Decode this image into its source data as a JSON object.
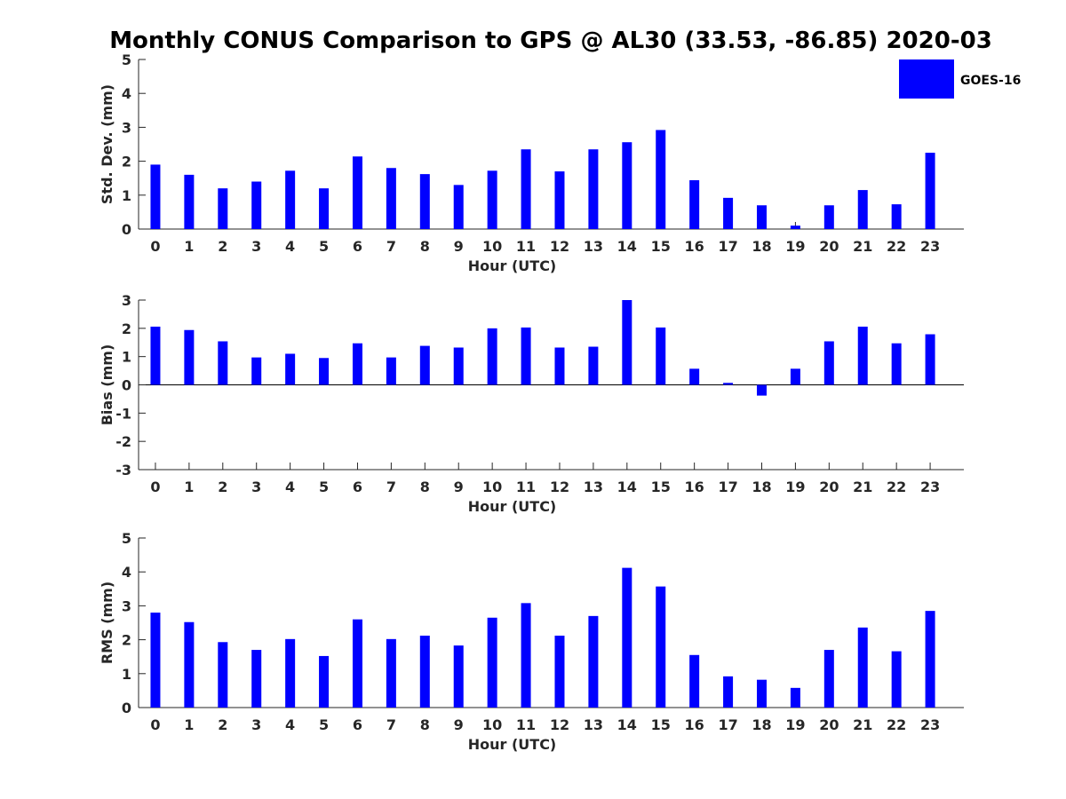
{
  "chart_data": {
    "title": "Monthly CONUS Comparison to GPS @ AL30 (33.53, -86.85) 2020-03",
    "bar_color": "#0000ff",
    "legend": {
      "label": "GOES-16",
      "color": "#0000ff",
      "location": "top-right"
    },
    "subplots": [
      {
        "type": "bar",
        "ylabel": "Std. Dev. (mm)",
        "xlabel": "Hour (UTC)",
        "ylim": [
          0,
          5
        ],
        "yticks": [
          "0",
          "1",
          "2",
          "3",
          "4",
          "5"
        ],
        "categories": [
          "0",
          "1",
          "2",
          "3",
          "4",
          "5",
          "6",
          "7",
          "8",
          "9",
          "10",
          "11",
          "12",
          "13",
          "14",
          "15",
          "16",
          "17",
          "18",
          "19",
          "20",
          "21",
          "22",
          "23"
        ],
        "values": [
          1.9,
          1.6,
          1.2,
          1.4,
          1.72,
          1.2,
          2.14,
          1.8,
          1.62,
          1.3,
          1.72,
          2.35,
          1.7,
          2.35,
          2.56,
          2.92,
          1.44,
          0.92,
          0.7,
          0.1,
          0.7,
          1.15,
          0.73,
          2.25
        ]
      },
      {
        "type": "bar",
        "ylabel": "Bias (mm)",
        "xlabel": "Hour (UTC)",
        "ylim": [
          -3,
          3
        ],
        "yticks": [
          "-3",
          "-2",
          "-1",
          "0",
          "1",
          "2",
          "3"
        ],
        "categories": [
          "0",
          "1",
          "2",
          "3",
          "4",
          "5",
          "6",
          "7",
          "8",
          "9",
          "10",
          "11",
          "12",
          "13",
          "14",
          "15",
          "16",
          "17",
          "18",
          "19",
          "20",
          "21",
          "22",
          "23"
        ],
        "values": [
          2.06,
          1.94,
          1.54,
          0.97,
          1.1,
          0.95,
          1.47,
          0.97,
          1.38,
          1.32,
          2.0,
          2.03,
          1.32,
          1.35,
          3.0,
          2.03,
          0.57,
          0.07,
          -0.38,
          0.57,
          1.54,
          2.06,
          1.47,
          1.79
        ]
      },
      {
        "type": "bar",
        "ylabel": "RMS (mm)",
        "xlabel": "Hour (UTC)",
        "ylim": [
          0,
          5
        ],
        "yticks": [
          "0",
          "1",
          "2",
          "3",
          "4",
          "5"
        ],
        "categories": [
          "0",
          "1",
          "2",
          "3",
          "4",
          "5",
          "6",
          "7",
          "8",
          "9",
          "10",
          "11",
          "12",
          "13",
          "14",
          "15",
          "16",
          "17",
          "18",
          "19",
          "20",
          "21",
          "22",
          "23"
        ],
        "values": [
          2.8,
          2.52,
          1.93,
          1.7,
          2.02,
          1.52,
          2.6,
          2.02,
          2.12,
          1.83,
          2.65,
          3.08,
          2.12,
          2.7,
          4.12,
          3.57,
          1.55,
          0.92,
          0.82,
          0.58,
          1.7,
          2.36,
          1.66,
          2.85
        ]
      }
    ]
  }
}
